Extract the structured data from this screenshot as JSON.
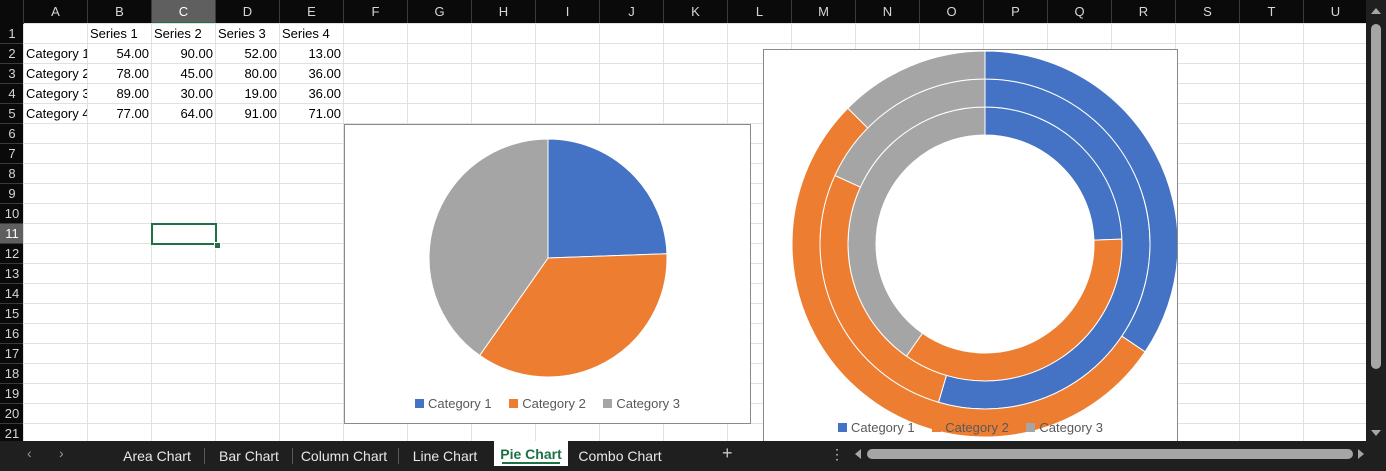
{
  "sheet": {
    "columns": [
      "A",
      "B",
      "C",
      "D",
      "E",
      "F",
      "G",
      "H",
      "I",
      "J",
      "K",
      "L",
      "M",
      "N",
      "O",
      "P",
      "Q",
      "R",
      "S",
      "T",
      "U"
    ],
    "rows": [
      "1",
      "2",
      "3",
      "4",
      "5",
      "6",
      "7",
      "8",
      "9",
      "10",
      "11",
      "12",
      "13",
      "14",
      "15",
      "16",
      "17",
      "18",
      "19",
      "20",
      "21"
    ],
    "selected_column": "C",
    "selected_row": "11",
    "header_row": [
      "",
      "Series 1",
      "Series 2",
      "Series 3",
      "Series 4"
    ],
    "data_rows": [
      [
        "Category 1",
        "54.00",
        "90.00",
        "52.00",
        "13.00"
      ],
      [
        "Category 2",
        "78.00",
        "45.00",
        "80.00",
        "36.00"
      ],
      [
        "Category 3",
        "89.00",
        "30.00",
        "19.00",
        "36.00"
      ],
      [
        "Category 4",
        "77.00",
        "64.00",
        "91.00",
        "71.00"
      ]
    ]
  },
  "chart_data": [
    {
      "type": "pie",
      "categories": [
        "Category 1",
        "Category 2",
        "Category 3"
      ],
      "values": [
        54,
        78,
        89
      ],
      "colors": [
        "#4472c4",
        "#ed7d31",
        "#a5a5a5"
      ],
      "legend": "bottom"
    },
    {
      "type": "doughnut",
      "categories": [
        "Category 1",
        "Category 2",
        "Category 3"
      ],
      "series": [
        {
          "values": [
            54,
            78,
            89
          ]
        },
        {
          "values": [
            90,
            45,
            30
          ]
        },
        {
          "values": [
            52,
            80,
            19
          ]
        }
      ],
      "colors": [
        "#4472c4",
        "#ed7d31",
        "#a5a5a5"
      ],
      "legend": "bottom"
    }
  ],
  "legend_labels": [
    "Category 1",
    "Category 2",
    "Category 3"
  ],
  "tabs": [
    "Area Chart",
    "Bar Chart",
    "Column Chart",
    "Line Chart",
    "Pie Chart",
    "Combo Chart"
  ],
  "active_tab": "Pie Chart",
  "add_sheet_label": "+",
  "more_label": "⋮"
}
